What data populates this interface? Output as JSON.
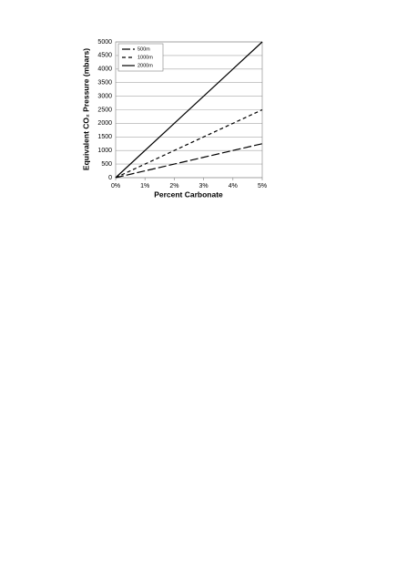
{
  "chart_data": {
    "type": "line",
    "x_label": "Percent Carbonate",
    "y_label": "Equivalent CO₂ Pressure (mbars)",
    "xlim": [
      0,
      5
    ],
    "xticks": [
      {
        "value": 0,
        "label": "0%"
      },
      {
        "value": 1,
        "label": "1%"
      },
      {
        "value": 2,
        "label": "2%"
      },
      {
        "value": 3,
        "label": "3%"
      },
      {
        "value": 4,
        "label": "4%"
      },
      {
        "value": 5,
        "label": "5%"
      }
    ],
    "ylim": [
      0,
      5000
    ],
    "yticks": [
      0,
      500,
      1000,
      1500,
      2000,
      2500,
      3000,
      3500,
      4000,
      4500,
      5000
    ],
    "grid": true,
    "legend": "upper left",
    "series": [
      {
        "name": "500m",
        "color": "#000000",
        "line_style": "long-dash",
        "x": [
          0,
          5
        ],
        "values": [
          0,
          1250
        ]
      },
      {
        "name": "1000m",
        "color": "#000000",
        "line_style": "dash",
        "x": [
          0,
          5
        ],
        "values": [
          0,
          2500
        ]
      },
      {
        "name": "2000m",
        "color": "#000000",
        "line_style": "solid",
        "x": [
          0,
          5
        ],
        "values": [
          0,
          5000
        ]
      }
    ]
  }
}
